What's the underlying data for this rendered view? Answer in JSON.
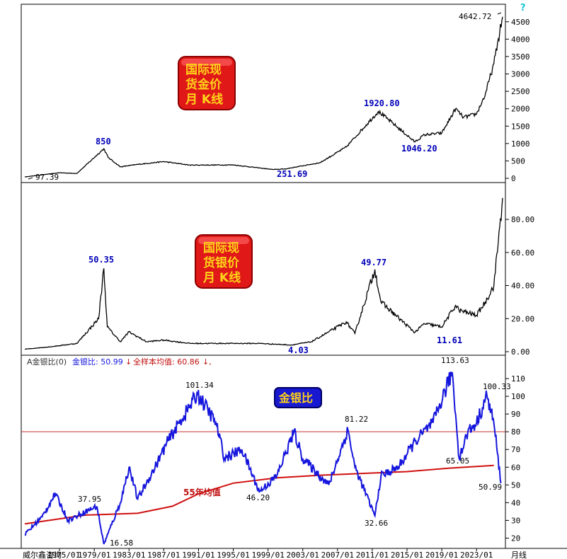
{
  "footer": {
    "brand": "威尔鑫咨询",
    "x_ticks": [
      "1975/01",
      "1979/01",
      "1983/01",
      "1987/01",
      "1991/01",
      "1995/01",
      "1999/01",
      "2003/01",
      "2007/01",
      "2011/01",
      "2015/01",
      "2019/01",
      "2023/01"
    ],
    "period_label": "月线"
  },
  "gold_panel": {
    "title_lines": [
      "国际现",
      "货金价",
      "月 K线"
    ],
    "question_mark": "?",
    "y_ticks": [
      "4500",
      "4000",
      "3500",
      "3000",
      "2500",
      "2000",
      "1500",
      "1000",
      "500",
      "0"
    ],
    "annotations": {
      "low_start": "97.39",
      "peak_1980": "850",
      "low_1999": "251.69",
      "peak_2011": "1920.80",
      "low_2015": "1046.20",
      "latest": "4642.72"
    }
  },
  "silver_panel": {
    "title_lines": [
      "国际现",
      "货银价",
      "月 K线"
    ],
    "y_ticks": [
      "80.00",
      "60.00",
      "40.00",
      "20.00",
      "0.00"
    ],
    "annotations": {
      "peak_1980": "50.35",
      "low_2001": "4.03",
      "peak_2011": "49.77",
      "low_2015": "11.61"
    }
  },
  "ratio_panel": {
    "legend_prefix": "A金银比(0)",
    "legend_series": "金银比: 50.99",
    "legend_arrow1": "↓",
    "legend_mean": "全样本均值: 60.86",
    "legend_arrow2": "↓,",
    "title": "金银比",
    "ma_label": "55年均值",
    "y_ticks": [
      "110",
      "100",
      "90",
      "80",
      "70",
      "60",
      "50",
      "40",
      "30",
      "20"
    ],
    "annotations": {
      "low_1980": "16.58",
      "v_1979": "37.95",
      "peak_1991": "101.34",
      "v_1998": "46.20",
      "v_2008": "81.22",
      "low_2011": "32.66",
      "peak_2020": "113.63",
      "v_2021": "65.05",
      "v_2024": "100.33",
      "latest": "50.99"
    }
  },
  "colors": {
    "ratio_line": "#1515dd",
    "ma_line": "#d01010",
    "ref_line": "#c83030",
    "label_blue": "#0000b8",
    "label_red": "#c01010",
    "badge_red": "#e01818",
    "badge_blue": "#1818d0"
  },
  "chart_data": [
    {
      "type": "line",
      "title": "国际现货金价月K线",
      "ylim": [
        0,
        4800
      ],
      "series": [
        {
          "x": [
            1971,
            1975,
            1977,
            1980.1,
            1980.6,
            1982,
            1984,
            1987,
            1990,
            1995,
            1999.6,
            2001,
            2005,
            2008,
            2011.7,
            2012.8,
            2015.9,
            2017,
            2019,
            2020.6,
            2021.5,
            2023,
            2024,
            2025,
            2026
          ],
          "values": [
            40,
            160,
            140,
            850,
            600,
            330,
            400,
            480,
            380,
            385,
            251.69,
            270,
            450,
            900,
            1920.8,
            1700,
            1046.2,
            1250,
            1300,
            2000,
            1750,
            1850,
            2400,
            3300,
            4642.72
          ]
        }
      ]
    },
    {
      "type": "line",
      "title": "国际现货银价月K线",
      "ylim": [
        0,
        95
      ],
      "series": [
        {
          "x": [
            1971,
            1974,
            1977,
            1979.5,
            1980.1,
            1980.5,
            1982,
            1983,
            1985,
            1987,
            1990,
            1995,
            1998,
            2001.7,
            2004,
            2006,
            2008,
            2009,
            2011.3,
            2012,
            2015.9,
            2017,
            2019,
            2020.6,
            2021,
            2023,
            2024,
            2025,
            2026
          ],
          "values": [
            1.5,
            3,
            5,
            20,
            50.35,
            15,
            6,
            12,
            6,
            7,
            5,
            5,
            5,
            4.03,
            6,
            12,
            18,
            11,
            49.77,
            30,
            11.61,
            17,
            15,
            28,
            25,
            22,
            30,
            40,
            93
          ]
        }
      ]
    },
    {
      "type": "line",
      "title": "金银比",
      "ylim": [
        15,
        118
      ],
      "reference_line": 80,
      "mean": 60.86,
      "series": [
        {
          "name": "金银比",
          "x": [
            1971,
            1973,
            1974.5,
            1976,
            1978,
            1979.3,
            1980.1,
            1982,
            1983,
            1984,
            1986,
            1987.5,
            1990.9,
            1993,
            1994,
            1996,
            1998,
            2000,
            2002,
            2003,
            2005,
            2006,
            2008.2,
            2009,
            2011.3,
            2012,
            2014,
            2016,
            2018,
            2020.2,
            2021,
            2022,
            2023,
            2024.2,
            2025,
            2025.8
          ],
          "values": [
            22,
            32,
            45,
            30,
            35,
            37.95,
            16.58,
            40,
            60,
            42,
            60,
            75,
            101.34,
            85,
            65,
            70,
            46.2,
            55,
            80,
            65,
            55,
            50,
            81.22,
            60,
            32.66,
            55,
            60,
            75,
            85,
            113.63,
            65.05,
            80,
            85,
            100.33,
            85,
            50.99
          ]
        },
        {
          "name": "55年均值",
          "x": [
            1971,
            1978,
            1984,
            1988,
            1991,
            1995,
            2000,
            2005,
            2010,
            2015,
            2020,
            2025
          ],
          "values": [
            28,
            33,
            34,
            38,
            45,
            51,
            54,
            55.5,
            56.5,
            57.5,
            59.5,
            61
          ]
        }
      ]
    }
  ]
}
